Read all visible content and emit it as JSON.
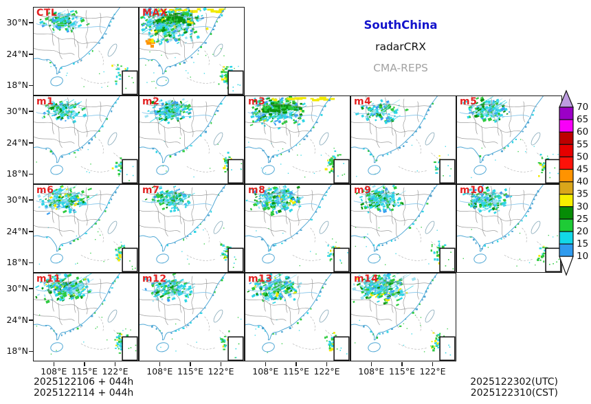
{
  "header": {
    "region_title": "SouthChina",
    "product_title": "radarCRX",
    "model_title": "CMA-REPS"
  },
  "colors": {
    "region_title": "#1414cc",
    "product_title": "#111111",
    "model_title": "#a3a3a3",
    "panel_label": "#e32222",
    "panel_border": "#161616",
    "coast_line": "#4da6d4",
    "province_line": "#8a8a8a",
    "river_line": "#7ec2e8",
    "ocean_dash": "#a8a8a8",
    "echo_palette": {
      "cyan": "#2fd5e5",
      "pale_blue": "#9fe2f2",
      "green": "#2ecb3f",
      "dark_green": "#0a9410",
      "blue": "#3b9ff0",
      "yellow": "#f2ea00",
      "orange": "#ff9300"
    }
  },
  "axes": {
    "y_tick_labels": [
      "30°N",
      "24°N",
      "18°N"
    ],
    "x_tick_labels": [
      "108°E",
      "115°E",
      "122°E"
    ]
  },
  "panels": [
    {
      "label": "CTL",
      "row": 0,
      "col": 0,
      "density": 0.9,
      "yellow_top": false,
      "hot_spot": false
    },
    {
      "label": "MAX",
      "row": 0,
      "col": 1,
      "density": 2.9,
      "yellow_top": true,
      "hot_spot": true
    },
    {
      "label": "m1",
      "row": 1,
      "col": 0,
      "density": 0.85,
      "yellow_top": false,
      "hot_spot": false
    },
    {
      "label": "m2",
      "row": 1,
      "col": 1,
      "density": 1.2,
      "yellow_top": false,
      "hot_spot": false
    },
    {
      "label": "m3",
      "row": 1,
      "col": 2,
      "density": 1.9,
      "yellow_top": true,
      "hot_spot": false
    },
    {
      "label": "m4",
      "row": 1,
      "col": 3,
      "density": 0.7,
      "yellow_top": false,
      "hot_spot": false
    },
    {
      "label": "m5",
      "row": 1,
      "col": 4,
      "density": 1.1,
      "yellow_top": false,
      "hot_spot": false
    },
    {
      "label": "m6",
      "row": 2,
      "col": 0,
      "density": 1.3,
      "yellow_top": false,
      "hot_spot": false
    },
    {
      "label": "m7",
      "row": 2,
      "col": 1,
      "density": 1.0,
      "yellow_top": false,
      "hot_spot": false
    },
    {
      "label": "m8",
      "row": 2,
      "col": 2,
      "density": 1.4,
      "yellow_top": false,
      "hot_spot": false
    },
    {
      "label": "m9",
      "row": 2,
      "col": 3,
      "density": 1.2,
      "yellow_top": false,
      "hot_spot": false
    },
    {
      "label": "m10",
      "row": 2,
      "col": 4,
      "density": 1.1,
      "yellow_top": false,
      "hot_spot": false
    },
    {
      "label": "m11",
      "row": 3,
      "col": 0,
      "density": 1.6,
      "yellow_top": false,
      "hot_spot": false
    },
    {
      "label": "m12",
      "row": 3,
      "col": 1,
      "density": 1.0,
      "yellow_top": false,
      "hot_spot": false
    },
    {
      "label": "m13",
      "row": 3,
      "col": 2,
      "density": 1.4,
      "yellow_top": false,
      "hot_spot": false
    },
    {
      "label": "m14",
      "row": 3,
      "col": 3,
      "density": 1.7,
      "yellow_top": false,
      "hot_spot": false
    }
  ],
  "colorbar": {
    "levels": [
      10,
      15,
      20,
      25,
      30,
      35,
      40,
      45,
      50,
      55,
      60,
      65,
      70
    ],
    "cell_colors_ascending": [
      "#2f9bee",
      "#12d8e8",
      "#1ecb36",
      "#068c06",
      "#f6ef00",
      "#daa61a",
      "#ff9300",
      "#fc1209",
      "#e60000",
      "#bd0000",
      "#f800f8",
      "#9b00c6"
    ],
    "over_arrow_color": "#bd9ce0",
    "under_arrow_color": "#ffffff"
  },
  "footer": {
    "init_line_1": "2025122106 + 044h",
    "init_line_2": "2025122114 + 044h",
    "valid_line_utc": "2025122302(UTC)",
    "valid_line_cst": "2025122310(CST)"
  }
}
